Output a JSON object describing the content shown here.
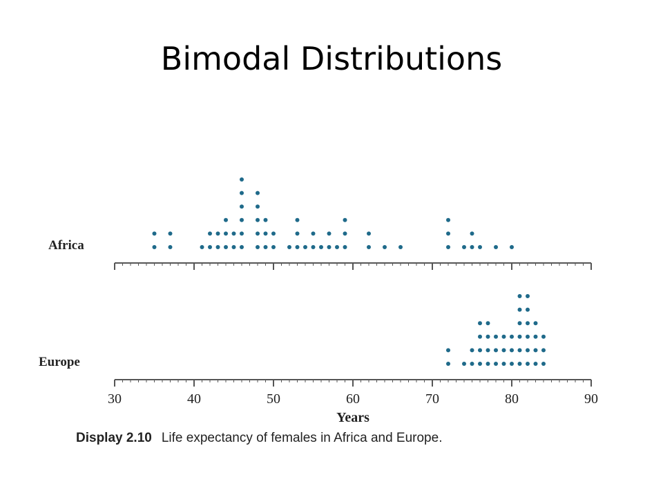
{
  "slide": {
    "title": "Bimodal Distributions"
  },
  "caption": {
    "label": "Display 2.10",
    "text": "Life expectancy of females in Africa and Europe."
  },
  "chart_data": {
    "type": "scatter",
    "subtype": "dot-plot",
    "xlabel": "Years",
    "xlim": [
      30,
      90
    ],
    "xticks": [
      30,
      40,
      50,
      60,
      70,
      80,
      90
    ],
    "series": [
      {
        "name": "Africa",
        "color": "#1f6a8a",
        "points": [
          [
            35,
            2
          ],
          [
            37,
            2
          ],
          [
            41,
            1
          ],
          [
            42,
            2
          ],
          [
            43,
            2
          ],
          [
            44,
            3
          ],
          [
            45,
            2
          ],
          [
            46,
            6
          ],
          [
            48,
            5
          ],
          [
            49,
            3
          ],
          [
            50,
            2
          ],
          [
            52,
            1
          ],
          [
            53,
            3
          ],
          [
            54,
            1
          ],
          [
            55,
            2
          ],
          [
            56,
            1
          ],
          [
            57,
            2
          ],
          [
            58,
            1
          ],
          [
            59,
            3
          ],
          [
            62,
            2
          ],
          [
            64,
            1
          ],
          [
            66,
            1
          ],
          [
            72,
            3
          ],
          [
            74,
            1
          ],
          [
            75,
            2
          ],
          [
            76,
            1
          ],
          [
            78,
            1
          ],
          [
            80,
            1
          ]
        ]
      },
      {
        "name": "Europe",
        "color": "#1f6a8a",
        "points": [
          [
            72,
            2
          ],
          [
            74,
            1
          ],
          [
            75,
            2
          ],
          [
            76,
            4
          ],
          [
            77,
            4
          ],
          [
            78,
            3
          ],
          [
            79,
            3
          ],
          [
            80,
            3
          ],
          [
            81,
            6
          ],
          [
            82,
            6
          ],
          [
            83,
            4
          ],
          [
            84,
            3
          ]
        ]
      }
    ]
  }
}
